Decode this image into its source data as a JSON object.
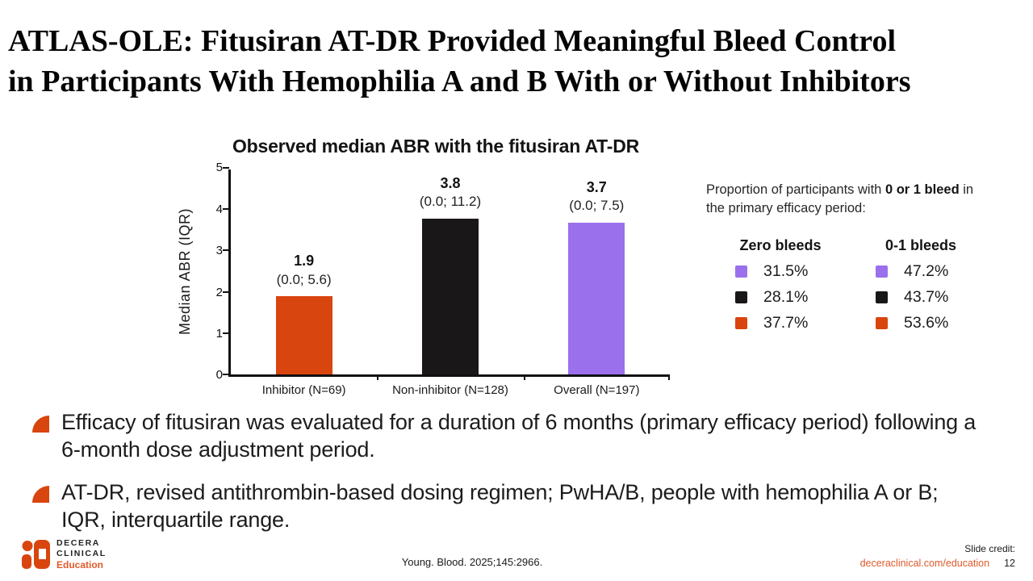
{
  "title": {
    "line1": "ATLAS-OLE: Fitusiran AT-DR Provided Meaningful Bleed Control",
    "line2": "in Participants With Hemophilia A and B With or Without Inhibitors"
  },
  "chart_data": {
    "type": "bar",
    "title": "Observed median ABR with the fitusiran AT-DR",
    "xlabel": "",
    "ylabel": "Median ABR (IQR)",
    "ylim": [
      0,
      5
    ],
    "yticks": [
      "0",
      "1",
      "2",
      "3",
      "4",
      "5"
    ],
    "grid": false,
    "legend_position": "none",
    "categories": [
      "Inhibitor (N=69)",
      "Non-inhibitor (N=128)",
      "Overall (N=197)"
    ],
    "values": [
      1.9,
      3.8,
      3.7
    ],
    "value_labels": [
      "1.9",
      "3.8",
      "3.7"
    ],
    "iqr_labels": [
      "(0.0; 5.6)",
      "(0.0; 11.2)",
      "(0.0; 7.5)"
    ],
    "bar_colors": [
      "#d9450e",
      "#1a1718",
      "#9b70ec"
    ]
  },
  "proportion_panel": {
    "intro_prefix": "Proportion of participants with ",
    "intro_bold": "0 or 1 bleed",
    "intro_suffix": " in the primary efficacy period:",
    "columns": [
      {
        "header": "Zero bleeds",
        "rows": [
          {
            "color": "#9b70ec",
            "value": "31.5%"
          },
          {
            "color": "#1a1718",
            "value": "28.1%"
          },
          {
            "color": "#d9450e",
            "value": "37.7%"
          }
        ]
      },
      {
        "header": "0-1 bleeds",
        "rows": [
          {
            "color": "#9b70ec",
            "value": "47.2%"
          },
          {
            "color": "#1a1718",
            "value": "43.7%"
          },
          {
            "color": "#d9450e",
            "value": "53.6%"
          }
        ]
      }
    ]
  },
  "bullets": [
    "Efficacy of fitusiran was evaluated for a duration of 6 months (primary efficacy period) following a 6-month dose adjustment period.",
    "AT-DR, revised antithrombin-based dosing regimen; PwHA/B, people with hemophilia A or B; IQR, interquartile range."
  ],
  "footer": {
    "logo_line1": "DECERA",
    "logo_line2": "CLINICAL",
    "logo_line3": "Education",
    "citation": "Young. Blood. 2025;145:2966.",
    "credit_label": "Slide credit:",
    "credit_link": "deceraclinical.com/education",
    "page_number": "12"
  },
  "colors": {
    "accent_orange": "#d9450e",
    "link_orange": "#e05a2b",
    "bar_black": "#1a1718",
    "bar_purple": "#9b70ec"
  }
}
